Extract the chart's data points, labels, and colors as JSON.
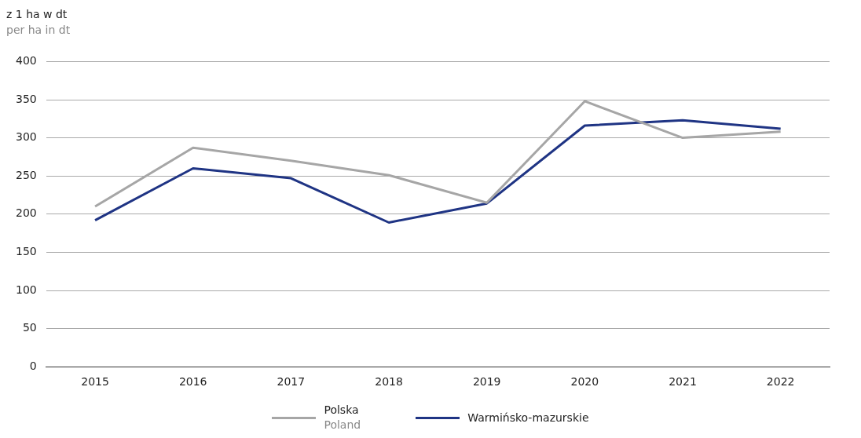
{
  "chart_data": {
    "type": "line",
    "ylabel": "z 1 ha w dt\nper ha in dt",
    "categories": [
      "2015",
      "2016",
      "2017",
      "2018",
      "2019",
      "2020",
      "2021",
      "2022"
    ],
    "series": [
      {
        "name": "Polska\nPoland",
        "color": "#a6a6a6",
        "values": [
          210,
          287,
          270,
          251,
          215,
          348,
          300,
          308
        ]
      },
      {
        "name": "Warmińsko-mazurskie",
        "color": "#1f3484",
        "values": [
          192,
          260,
          247,
          189,
          214,
          316,
          323,
          312
        ]
      }
    ],
    "ylim": [
      0,
      400
    ],
    "yticks": [
      0,
      50,
      100,
      150,
      200,
      250,
      300,
      350,
      400
    ],
    "grid": "y",
    "legend": "bottom",
    "marker": "none",
    "line_style": "solid"
  }
}
